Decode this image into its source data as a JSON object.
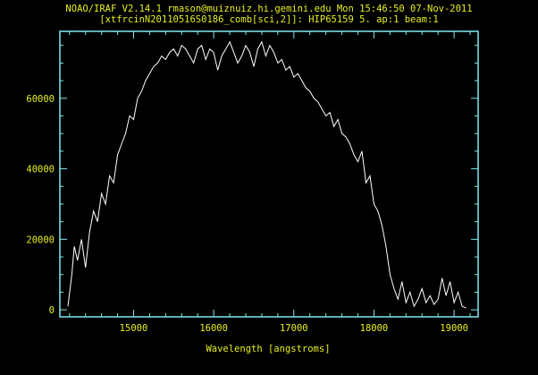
{
  "header": {
    "line1": "NOAO/IRAF V2.14.1 rmason@muiznuiz.hi.gemini.edu Mon 15:46:50 07-Nov-2011",
    "line2": "[xtfrcinN20110516S0186_comb[sci,2]]: HIP65159 5. ap:1 beam:1"
  },
  "colors": {
    "background": "#000000",
    "axes": "#7fe8f0",
    "text": "#e6f01e",
    "spectrum": "#ffffff"
  },
  "chart_data": {
    "type": "line",
    "title": "",
    "xlabel": "Wavelength [angstroms]",
    "ylabel": "",
    "xlim": [
      14080,
      19300
    ],
    "ylim": [
      -2000,
      79000
    ],
    "xticks": [
      15000,
      16000,
      17000,
      18000,
      19000
    ],
    "yticks": [
      0,
      20000,
      40000,
      60000
    ],
    "xtick_labels": [
      "15000",
      "16000",
      "17000",
      "18000",
      "19000"
    ],
    "ytick_labels": [
      "0",
      "20000",
      "40000",
      "60000"
    ],
    "grid": false,
    "series": [
      {
        "x": [
          14180,
          14230,
          14260,
          14300,
          14350,
          14400,
          14450,
          14500,
          14550,
          14600,
          14650,
          14700,
          14750,
          14800,
          14850,
          14900,
          14950,
          15000,
          15050,
          15100,
          15150,
          15200,
          15250,
          15300,
          15350,
          15400,
          15450,
          15500,
          15550,
          15600,
          15650,
          15700,
          15750,
          15800,
          15850,
          15900,
          15950,
          16000,
          16050,
          16100,
          16150,
          16200,
          16250,
          16300,
          16350,
          16400,
          16450,
          16500,
          16550,
          16600,
          16650,
          16700,
          16750,
          16800,
          16850,
          16900,
          16950,
          17000,
          17050,
          17100,
          17150,
          17200,
          17250,
          17300,
          17350,
          17400,
          17450,
          17500,
          17550,
          17600,
          17650,
          17700,
          17750,
          17800,
          17850,
          17900,
          17950,
          18000,
          18050,
          18100,
          18150,
          18200,
          18250,
          18300,
          18350,
          18400,
          18450,
          18500,
          18550,
          18600,
          18650,
          18700,
          18750,
          18800,
          18850,
          18900,
          18950,
          19000,
          19050,
          19100,
          19150
        ],
        "y": [
          1000,
          10000,
          18000,
          14000,
          20000,
          12000,
          22000,
          28000,
          25000,
          33000,
          30000,
          38000,
          36000,
          44000,
          47000,
          50000,
          55000,
          54000,
          60000,
          62000,
          65000,
          67000,
          69000,
          70000,
          72000,
          71000,
          73000,
          74000,
          72000,
          75000,
          74000,
          72000,
          70000,
          74000,
          75000,
          71000,
          74000,
          73000,
          68000,
          72000,
          74000,
          76000,
          73000,
          70000,
          72000,
          75000,
          73000,
          69000,
          74000,
          76000,
          72000,
          75000,
          73000,
          70000,
          71000,
          68000,
          69000,
          66000,
          67000,
          65000,
          63000,
          62000,
          60000,
          59000,
          57000,
          55000,
          56000,
          52000,
          54000,
          50000,
          49000,
          47000,
          44000,
          42000,
          45000,
          36000,
          38000,
          30000,
          28000,
          24000,
          18000,
          10000,
          6000,
          3000,
          8000,
          2000,
          5000,
          1000,
          3000,
          6000,
          2000,
          4000,
          1500,
          3000,
          9000,
          4000,
          8000,
          2000,
          5000,
          1000,
          500
        ]
      }
    ]
  }
}
